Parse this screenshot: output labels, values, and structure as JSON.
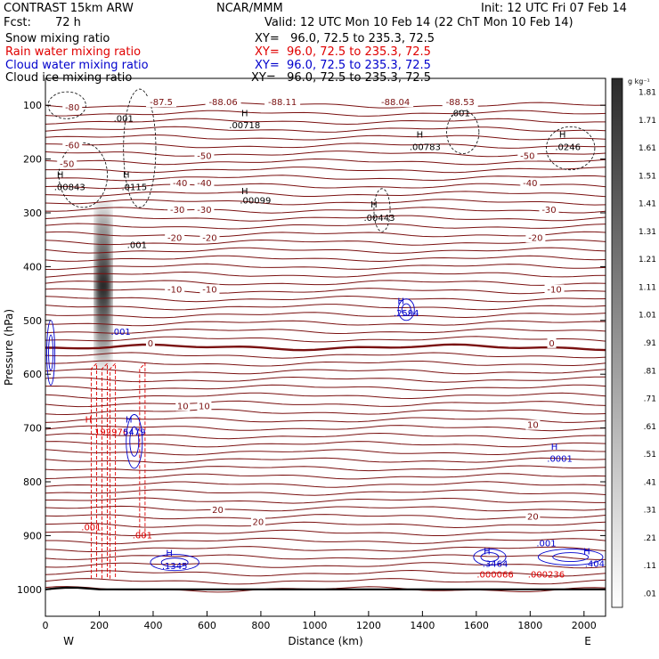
{
  "header": {
    "title": "CONTRAST 15km ARW",
    "model": "NCAR/MMM",
    "init": "Init: 12 UTC Fri 07 Feb 14",
    "fcst_label": "Fcst:",
    "fcst_value": "72 h",
    "valid": "Valid: 12 UTC Mon 10 Feb 14 (22 ChT Mon 10 Feb 14)",
    "lines": [
      {
        "name": "Snow mixing ratio",
        "xy": "XY=   96.0, 72.5 to 235.3, 72.5",
        "color": "#000000"
      },
      {
        "name": "Rain water mixing ratio",
        "xy": "XY=  96.0, 72.5 to 235.3, 72.5",
        "color": "#e00000"
      },
      {
        "name": "Cloud water mixing ratio",
        "xy": "XY=  96.0, 72.5 to 235.3, 72.5",
        "color": "#0000cc"
      },
      {
        "name": "Cloud ice mixing ratio",
        "xy": "XY=   96.0, 72.5 to 235.3, 72.5",
        "color": "#000000"
      }
    ]
  },
  "chart_data": {
    "type": "contour",
    "xlabel": "Distance (km)",
    "ylabel": "Pressure (hPa)",
    "xlim": [
      0,
      2080
    ],
    "ylim": [
      1050,
      50
    ],
    "xticks": [
      0,
      200,
      400,
      600,
      800,
      1000,
      1200,
      1400,
      1600,
      1800,
      2000
    ],
    "yticks": [
      100,
      200,
      300,
      400,
      500,
      600,
      700,
      800,
      900,
      1000
    ],
    "x_end_labels": {
      "west": "W",
      "east": "E"
    },
    "colorbar": {
      "unit": "g kg⁻¹",
      "ticks": [
        ".01",
        ".11",
        ".21",
        ".31",
        ".41",
        ".51",
        ".61",
        ".71",
        ".81",
        ".91",
        "1.01",
        "1.11",
        "1.21",
        "1.31",
        "1.41",
        "1.51",
        "1.61",
        "1.71",
        "1.81"
      ]
    },
    "temperature_labels": [
      {
        "text": "-80",
        "x": 100,
        "p": 110
      },
      {
        "text": "-87.5",
        "x": 430,
        "p": 100
      },
      {
        "text": "-88.06",
        "x": 660,
        "p": 100
      },
      {
        "text": "-88.11",
        "x": 880,
        "p": 100
      },
      {
        "text": "-88.04",
        "x": 1300,
        "p": 100
      },
      {
        "text": "-88.53",
        "x": 1540,
        "p": 100
      },
      {
        "text": "-60",
        "x": 100,
        "p": 180
      },
      {
        "text": "-50",
        "x": 80,
        "p": 215
      },
      {
        "text": "-50",
        "x": 590,
        "p": 200
      },
      {
        "text": "-50",
        "x": 1790,
        "p": 200
      },
      {
        "text": "-40",
        "x": 500,
        "p": 250
      },
      {
        "text": "-40",
        "x": 590,
        "p": 250
      },
      {
        "text": "-40",
        "x": 1800,
        "p": 250
      },
      {
        "text": "-30",
        "x": 490,
        "p": 300
      },
      {
        "text": "-30",
        "x": 590,
        "p": 300
      },
      {
        "text": "-30",
        "x": 1870,
        "p": 300
      },
      {
        "text": "-20",
        "x": 480,
        "p": 352
      },
      {
        "text": "-20",
        "x": 610,
        "p": 352
      },
      {
        "text": "-20",
        "x": 1820,
        "p": 352
      },
      {
        "text": "-10",
        "x": 480,
        "p": 448
      },
      {
        "text": "-10",
        "x": 610,
        "p": 448
      },
      {
        "text": "-10",
        "x": 1890,
        "p": 448
      },
      {
        "text": "0",
        "x": 390,
        "p": 548
      },
      {
        "text": "0",
        "x": 1880,
        "p": 548
      },
      {
        "text": "10",
        "x": 510,
        "p": 665
      },
      {
        "text": "10",
        "x": 590,
        "p": 665
      },
      {
        "text": "10",
        "x": 1810,
        "p": 700
      },
      {
        "text": "20",
        "x": 640,
        "p": 858
      },
      {
        "text": "20",
        "x": 790,
        "p": 880
      },
      {
        "text": "20",
        "x": 1810,
        "p": 870
      }
    ],
    "snow_labels": [
      {
        "text": "H",
        "x": 55,
        "p": 235,
        "color": "#000000"
      },
      {
        "text": ".00843",
        "x": 90,
        "p": 258,
        "color": "#000000"
      },
      {
        "text": "H",
        "x": 300,
        "p": 235,
        "color": "#000000"
      },
      {
        "text": ".0115",
        "x": 330,
        "p": 258,
        "color": "#000000"
      },
      {
        "text": ".001",
        "x": 290,
        "p": 130,
        "color": "#000000"
      },
      {
        "text": ".001",
        "x": 340,
        "p": 365,
        "color": "#000000"
      },
      {
        "text": "H",
        "x": 740,
        "p": 120,
        "color": "#000000"
      },
      {
        "text": ".00718",
        "x": 740,
        "p": 143,
        "color": "#000000"
      },
      {
        "text": "H",
        "x": 740,
        "p": 265,
        "color": "#000000"
      },
      {
        "text": ".00099",
        "x": 780,
        "p": 283,
        "color": "#000000"
      },
      {
        "text": "H",
        "x": 1220,
        "p": 290,
        "color": "#000000"
      },
      {
        "text": ".00443",
        "x": 1240,
        "p": 315,
        "color": "#000000"
      },
      {
        "text": ".001",
        "x": 1540,
        "p": 120,
        "color": "#000000"
      },
      {
        "text": "H",
        "x": 1390,
        "p": 160,
        "color": "#000000"
      },
      {
        "text": ".00783",
        "x": 1410,
        "p": 183,
        "color": "#000000"
      },
      {
        "text": "H",
        "x": 1920,
        "p": 160,
        "color": "#000000"
      },
      {
        "text": ".0246",
        "x": 1940,
        "p": 183,
        "color": "#000000"
      }
    ],
    "rain_labels": [
      {
        "text": "H",
        "x": 160,
        "p": 690,
        "color": "#e00000"
      },
      {
        "text": ".192976",
        "x": 240,
        "p": 713,
        "color": "#e00000"
      },
      {
        "text": ".001",
        "x": 170,
        "p": 890,
        "color": "#e00000"
      },
      {
        "text": ".001",
        "x": 360,
        "p": 905,
        "color": "#e00000"
      },
      {
        "text": ".000066",
        "x": 1670,
        "p": 978,
        "color": "#e00000"
      },
      {
        "text": ".000236",
        "x": 1860,
        "p": 978,
        "color": "#e00000"
      }
    ],
    "cloud_labels": [
      {
        "text": ".001",
        "x": 280,
        "p": 527,
        "color": "#0000cc"
      },
      {
        "text": "H",
        "x": 310,
        "p": 690,
        "color": "#0000cc"
      },
      {
        "text": "5479",
        "x": 330,
        "p": 713,
        "color": "#0000cc"
      },
      {
        "text": "H",
        "x": 1320,
        "p": 470,
        "color": "#0000cc"
      },
      {
        "text": ".2594",
        "x": 1340,
        "p": 492,
        "color": "#0000cc"
      },
      {
        "text": "H",
        "x": 1890,
        "p": 740,
        "color": "#0000cc"
      },
      {
        "text": ".0001",
        "x": 1910,
        "p": 763,
        "color": "#0000cc"
      },
      {
        "text": "H",
        "x": 460,
        "p": 938,
        "color": "#0000cc"
      },
      {
        "text": ".1345",
        "x": 480,
        "p": 962,
        "color": "#0000cc"
      },
      {
        "text": "H",
        "x": 1640,
        "p": 935,
        "color": "#0000cc"
      },
      {
        "text": ".3464",
        "x": 1670,
        "p": 958,
        "color": "#0000cc"
      },
      {
        "text": ".001",
        "x": 1860,
        "p": 920,
        "color": "#0000cc"
      },
      {
        "text": "H",
        "x": 2010,
        "p": 935,
        "color": "#0000cc"
      },
      {
        "text": ".404",
        "x": 2040,
        "p": 958,
        "color": "#0000cc"
      }
    ]
  }
}
